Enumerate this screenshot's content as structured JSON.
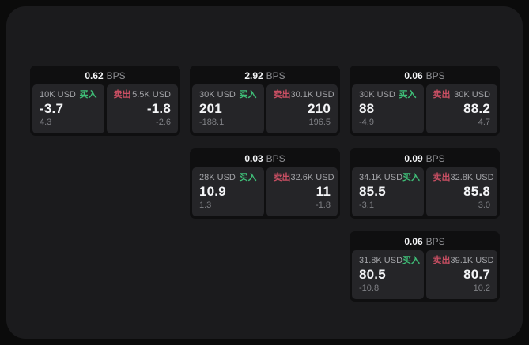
{
  "colors": {
    "outer_bg": "#0b0b0b",
    "panel_bg": "#1b1b1d",
    "card_bg": "#0f0f10",
    "cell_bg": "#252528",
    "value_text": "#f4f5f7",
    "amount_text": "#a3a4a8",
    "muted_text": "#8e8f93",
    "dim_text": "#7f8085",
    "buy": "#3fbf78",
    "sell": "#c94f63"
  },
  "labels": {
    "bps_unit": "BPS",
    "buy_side": "买入",
    "sell_side": "卖出"
  },
  "cards": [
    {
      "row": 1,
      "col": 1,
      "bps": "0.62",
      "buy": {
        "amount": "10K USD",
        "value": "-3.7",
        "delta": "4.3"
      },
      "sell": {
        "amount": "5.5K USD",
        "value": "-1.8",
        "delta": "-2.6"
      }
    },
    {
      "row": 1,
      "col": 2,
      "bps": "2.92",
      "buy": {
        "amount": "30K USD",
        "value": "201",
        "delta": "-188.1"
      },
      "sell": {
        "amount": "30.1K USD",
        "value": "210",
        "delta": "196.5"
      }
    },
    {
      "row": 1,
      "col": 3,
      "bps": "0.06",
      "buy": {
        "amount": "30K USD",
        "value": "88",
        "delta": "-4.9"
      },
      "sell": {
        "amount": "30K USD",
        "value": "88.2",
        "delta": "4.7"
      }
    },
    {
      "row": 2,
      "col": 2,
      "bps": "0.03",
      "buy": {
        "amount": "28K USD",
        "value": "10.9",
        "delta": "1.3"
      },
      "sell": {
        "amount": "32.6K USD",
        "value": "11",
        "delta": "-1.8"
      }
    },
    {
      "row": 2,
      "col": 3,
      "bps": "0.09",
      "buy": {
        "amount": "34.1K USD",
        "value": "85.5",
        "delta": "-3.1"
      },
      "sell": {
        "amount": "32.8K USD",
        "value": "85.8",
        "delta": "3.0"
      }
    },
    {
      "row": 3,
      "col": 3,
      "bps": "0.06",
      "buy": {
        "amount": "31.8K USD",
        "value": "80.5",
        "delta": "-10.8"
      },
      "sell": {
        "amount": "39.1K USD",
        "value": "80.7",
        "delta": "10.2"
      }
    }
  ]
}
